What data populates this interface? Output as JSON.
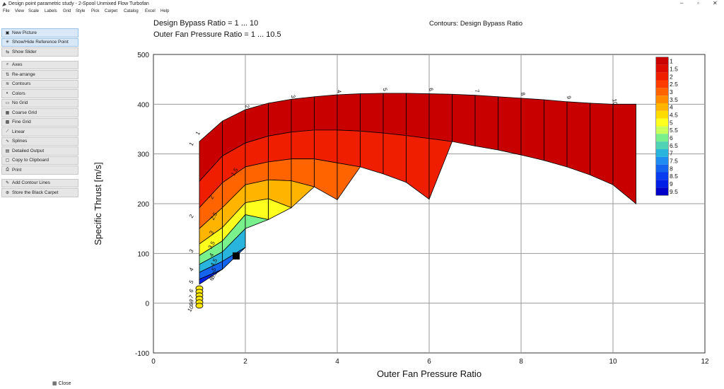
{
  "window": {
    "title": "Design point parametric study - 2-Spool Unmixed Flow Turbofan",
    "controls": [
      "–",
      "▫",
      "✕"
    ]
  },
  "menu": [
    "File",
    "View",
    "Scale",
    "Labels",
    "Grid",
    "Style",
    "Pick",
    "Carpet",
    "Catalog",
    "Excel",
    "Help"
  ],
  "sidebar": {
    "items": [
      {
        "label": "New Picture",
        "icon": "picture-icon",
        "highlight": true
      },
      {
        "label": "Show/Hide Reference Point",
        "icon": "sun-icon",
        "highlight": true
      },
      {
        "label": "Show Slider",
        "icon": "slider-icon",
        "highlight": false
      },
      {
        "gap": true
      },
      {
        "label": "Axes",
        "icon": "magnifier-icon",
        "highlight": false
      },
      {
        "label": "Re-arrange",
        "icon": "rearrange-icon",
        "highlight": false
      },
      {
        "label": "Contours",
        "icon": "contours-icon",
        "highlight": false
      },
      {
        "label": "Colors",
        "icon": "palette-icon",
        "highlight": false
      },
      {
        "label": "No Grid",
        "icon": "no-grid-icon",
        "highlight": false
      },
      {
        "label": "Coarse Grid",
        "icon": "coarse-grid-icon",
        "highlight": false
      },
      {
        "label": "Fine Grid",
        "icon": "fine-grid-icon",
        "highlight": false
      },
      {
        "label": "Linear",
        "icon": "linear-icon",
        "highlight": false
      },
      {
        "label": "Splines",
        "icon": "splines-icon",
        "highlight": false
      },
      {
        "label": "Detailed Output",
        "icon": "document-icon",
        "highlight": false
      },
      {
        "label": "Copy to Clipboard",
        "icon": "clipboard-icon",
        "highlight": false
      },
      {
        "label": "Print",
        "icon": "printer-icon",
        "highlight": false
      },
      {
        "gap": true
      },
      {
        "label": "Add Contour Lines",
        "icon": "add-contour-icon",
        "highlight": false
      },
      {
        "label": "Store the Black Carpet",
        "icon": "store-icon",
        "highlight": false
      }
    ],
    "close_label": "Close"
  },
  "header": {
    "line1": "Design Bypass Ratio = 1 ... 10",
    "line2": "Outer Fan Pressure Ratio = 1 ... 10.5",
    "contours_title": "Contours: Design Bypass Ratio"
  },
  "chart_data": {
    "type": "contour",
    "xlabel": "Outer Fan Pressure Ratio",
    "ylabel": "Specific Thrust [m/s]",
    "xlim": [
      0,
      12
    ],
    "ylim": [
      -100,
      500
    ],
    "xticks": [
      0,
      2,
      4,
      6,
      8,
      10,
      12
    ],
    "yticks": [
      -100,
      0,
      100,
      200,
      300,
      400,
      500
    ],
    "grid": true,
    "legend_position": "top-right",
    "legend_labels": [
      "1",
      "1.5",
      "2",
      "2.5",
      "3",
      "3.5",
      "4",
      "4.5",
      "5",
      "5.5",
      "6",
      "6.5",
      "7",
      "7.5",
      "8",
      "8.5",
      "9",
      "9.5"
    ],
    "legend_colors": [
      "#c80000",
      "#dc0c00",
      "#f01e00",
      "#ff3c00",
      "#ff6400",
      "#ff8c00",
      "#ffb400",
      "#ffdc00",
      "#ffff1e",
      "#c8ff5a",
      "#78f08c",
      "#50d2b4",
      "#28b4dc",
      "#1e8cf0",
      "#1464f0",
      "#0a3cf0",
      "#001ee6",
      "#0000c8"
    ],
    "reference_point": {
      "x": 1.8,
      "y": 95
    },
    "bpr_curve_labels": [
      {
        "text": "1",
        "x": 1.0,
        "y": 325
      },
      {
        "text": "2",
        "x": 1.0,
        "y": 180
      },
      {
        "text": "3",
        "x": 1.0,
        "y": 110
      },
      {
        "text": "4",
        "x": 1.0,
        "y": 73
      },
      {
        "text": "5",
        "x": 1.0,
        "y": 48
      },
      {
        "text": "6",
        "x": 1.0,
        "y": 30
      },
      {
        "text": "7",
        "x": 1.0,
        "y": 18
      },
      {
        "text": "8",
        "x": 1.0,
        "y": 10
      },
      {
        "text": "9",
        "x": 1.0,
        "y": 3
      },
      {
        "text": "10",
        "x": 1.0,
        "y": -3
      }
    ],
    "fpr_curve_labels": [
      {
        "text": "2",
        "x": 2.0,
        "y": 395
      },
      {
        "text": "3",
        "x": 3.0,
        "y": 415
      },
      {
        "text": "4",
        "x": 4.0,
        "y": 425
      },
      {
        "text": "5",
        "x": 5.0,
        "y": 429
      },
      {
        "text": "6",
        "x": 6.0,
        "y": 429
      },
      {
        "text": "7",
        "x": 7.0,
        "y": 426
      },
      {
        "text": "8",
        "x": 8.0,
        "y": 420
      },
      {
        "text": "9",
        "x": 9.0,
        "y": 413
      },
      {
        "text": "10",
        "x": 10.0,
        "y": 404
      }
    ],
    "inner_labels": [
      {
        "text": "1",
        "x": 1.0,
        "y": 340
      },
      {
        "text": "1.5",
        "x": 1.8,
        "y": 262
      },
      {
        "text": "2",
        "x": 1.3,
        "y": 211
      },
      {
        "text": "2.5",
        "x": 1.35,
        "y": 173
      },
      {
        "text": "3",
        "x": 1.3,
        "y": 140
      },
      {
        "text": "3.5",
        "x": 1.3,
        "y": 115
      },
      {
        "text": "4",
        "x": 1.3,
        "y": 95
      },
      {
        "text": "4.5",
        "x": 1.35,
        "y": 80
      },
      {
        "text": "5",
        "x": 1.35,
        "y": 66
      },
      {
        "text": "5.5",
        "x": 1.35,
        "y": 55
      },
      {
        "text": "6",
        "x": 1.3,
        "y": 47
      }
    ],
    "grid_rows_fpr": [
      {
        "fpr": 1.0,
        "y": [
          325,
          245,
          192,
          150,
          119,
          96,
          78,
          62,
          48,
          38
        ]
      },
      {
        "fpr": 1.5,
        "y": [
          366,
          296,
          242,
          192,
          152,
          125,
          103,
          84,
          68,
          null
        ]
      },
      {
        "fpr": 2.0,
        "y": [
          389,
          322,
          274,
          238,
          202,
          178,
          150,
          112,
          null,
          null
        ]
      },
      {
        "fpr": 2.5,
        "y": [
          402,
          336,
          284,
          248,
          210,
          168,
          null,
          null,
          null,
          null
        ]
      },
      {
        "fpr": 3.0,
        "y": [
          410,
          344,
          290,
          246,
          192,
          null,
          null,
          null,
          null,
          null
        ]
      },
      {
        "fpr": 3.5,
        "y": [
          415,
          348,
          290,
          234,
          null,
          null,
          null,
          null,
          null,
          null
        ]
      },
      {
        "fpr": 4.0,
        "y": [
          419,
          348,
          282,
          208,
          null,
          null,
          null,
          null,
          null,
          null
        ]
      },
      {
        "fpr": 4.5,
        "y": [
          421,
          346,
          274,
          null,
          null,
          null,
          null,
          null,
          null,
          null
        ]
      },
      {
        "fpr": 5.0,
        "y": [
          422,
          342,
          260,
          null,
          null,
          null,
          null,
          null,
          null,
          null
        ]
      },
      {
        "fpr": 5.5,
        "y": [
          422,
          337,
          243,
          null,
          null,
          null,
          null,
          null,
          null,
          null
        ]
      },
      {
        "fpr": 6.0,
        "y": [
          421,
          331,
          209,
          null,
          null,
          null,
          null,
          null,
          null,
          null
        ]
      },
      {
        "fpr": 6.5,
        "y": [
          420,
          325,
          null,
          null,
          null,
          null,
          null,
          null,
          null,
          null
        ]
      },
      {
        "fpr": 7.0,
        "y": [
          418,
          316,
          null,
          null,
          null,
          null,
          null,
          null,
          null,
          null
        ]
      },
      {
        "fpr": 7.5,
        "y": [
          415,
          308,
          null,
          null,
          null,
          null,
          null,
          null,
          null,
          null
        ]
      },
      {
        "fpr": 8.0,
        "y": [
          412,
          298,
          null,
          null,
          null,
          null,
          null,
          null,
          null,
          null
        ]
      },
      {
        "fpr": 8.5,
        "y": [
          409,
          287,
          null,
          null,
          null,
          null,
          null,
          null,
          null,
          null
        ]
      },
      {
        "fpr": 9.0,
        "y": [
          405,
          274,
          null,
          null,
          null,
          null,
          null,
          null,
          null,
          null
        ]
      },
      {
        "fpr": 9.5,
        "y": [
          402,
          258,
          null,
          null,
          null,
          null,
          null,
          null,
          null,
          null
        ]
      },
      {
        "fpr": 10.0,
        "y": [
          400,
          238,
          null,
          null,
          null,
          null,
          null,
          null,
          null,
          null
        ]
      },
      {
        "fpr": 10.5,
        "y": [
          400,
          200,
          null,
          null,
          null,
          null,
          null,
          null,
          null,
          null
        ]
      }
    ]
  }
}
